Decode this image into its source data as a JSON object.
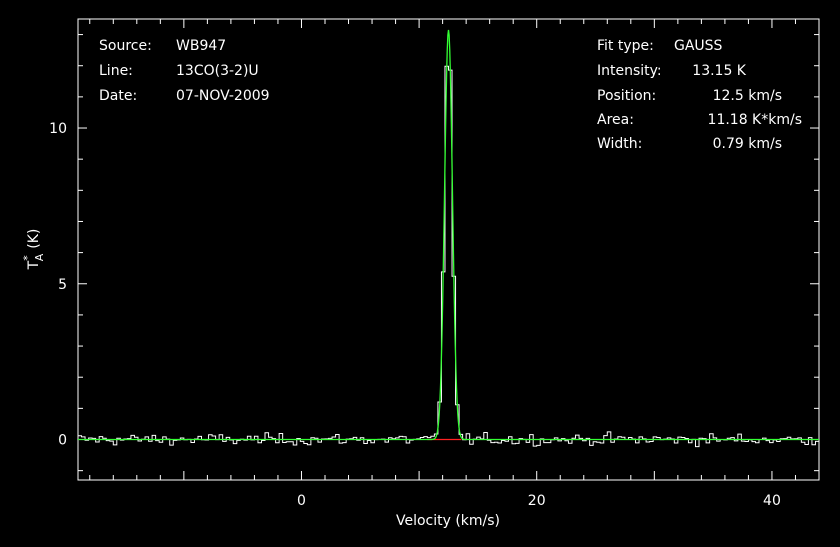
{
  "chart_data": {
    "type": "line",
    "title": "",
    "xlabel": "Velocity (km/s)",
    "ylabel_main": "T",
    "ylabel_sup": "*",
    "ylabel_sub": "A",
    "ylabel_unit": "(K)",
    "xlim": [
      -19.0,
      44.0
    ],
    "ylim": [
      -1.3,
      13.5
    ],
    "x_ticks": [
      0,
      20,
      40
    ],
    "y_ticks": [
      0,
      5,
      10
    ],
    "x_tick_labels": [
      "0",
      "20",
      "40"
    ],
    "y_tick_labels": [
      "0",
      "5",
      "10"
    ],
    "grid": false,
    "info_left": [
      {
        "key": "Source:",
        "value": "WB947"
      },
      {
        "key": "Line:",
        "value": "13CO(3-2)U"
      },
      {
        "key": "Date:",
        "value": "07-NOV-2009"
      }
    ],
    "info_right": [
      {
        "key": "Fit type:",
        "value": "GAUSS"
      },
      {
        "key": "Intensity:",
        "value": "13.15 K"
      },
      {
        "key": "Position:",
        "value": "12.5 km/s"
      },
      {
        "key": "Area:",
        "value": "11.18 K*km/s"
      },
      {
        "key": "Width:",
        "value": "0.79 km/s"
      }
    ],
    "fit": {
      "amplitude": 13.15,
      "center": 12.5,
      "fwhm": 0.79
    },
    "noise_rms": 0.18,
    "channel_width": 0.3,
    "colors": {
      "spectrum": "#ffffff",
      "fit": "#33ff33",
      "baseline": "#ff2222",
      "axes": "#ffffff",
      "background": "#000000"
    }
  }
}
